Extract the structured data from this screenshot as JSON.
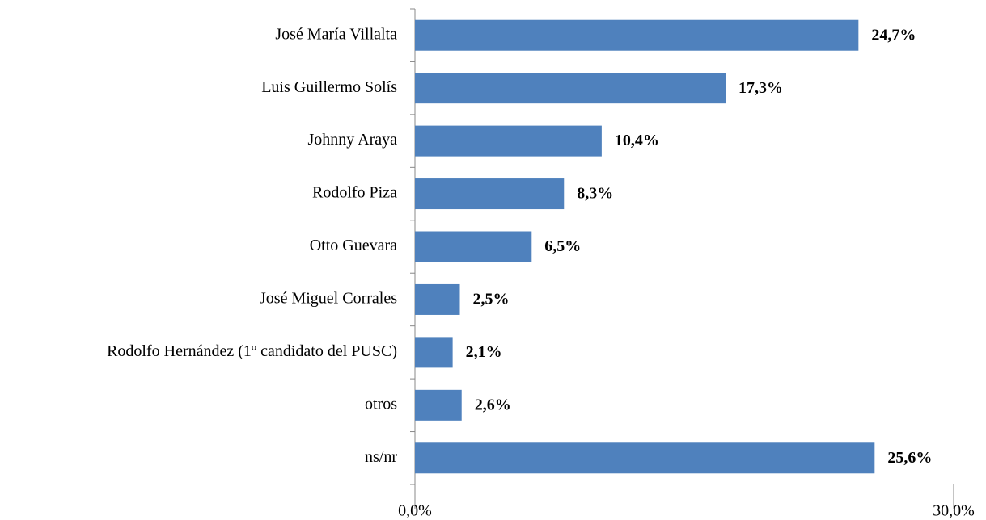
{
  "chart_data": {
    "type": "bar",
    "orientation": "horizontal",
    "categories": [
      "José María Villalta",
      "Luis Guillermo Solís",
      "Johnny Araya",
      "Rodolfo Piza",
      "Otto Guevara",
      "José Miguel Corrales",
      "Rodolfo Hernández (1º candidato del PUSC)",
      "otros",
      "ns/nr"
    ],
    "values": [
      24.7,
      17.3,
      10.4,
      8.3,
      6.5,
      2.5,
      2.1,
      2.6,
      25.6
    ],
    "value_labels": [
      "24,7%",
      "17,3%",
      "10,4%",
      "8,3%",
      "6,5%",
      "2,5%",
      "2,1%",
      "2,6%",
      "25,6%"
    ],
    "color": "#4f81bd",
    "xlim": [
      0,
      30
    ],
    "xticks": [
      {
        "value": 0,
        "label": "0,0%"
      },
      {
        "value": 30,
        "label": "30,0%"
      }
    ]
  }
}
